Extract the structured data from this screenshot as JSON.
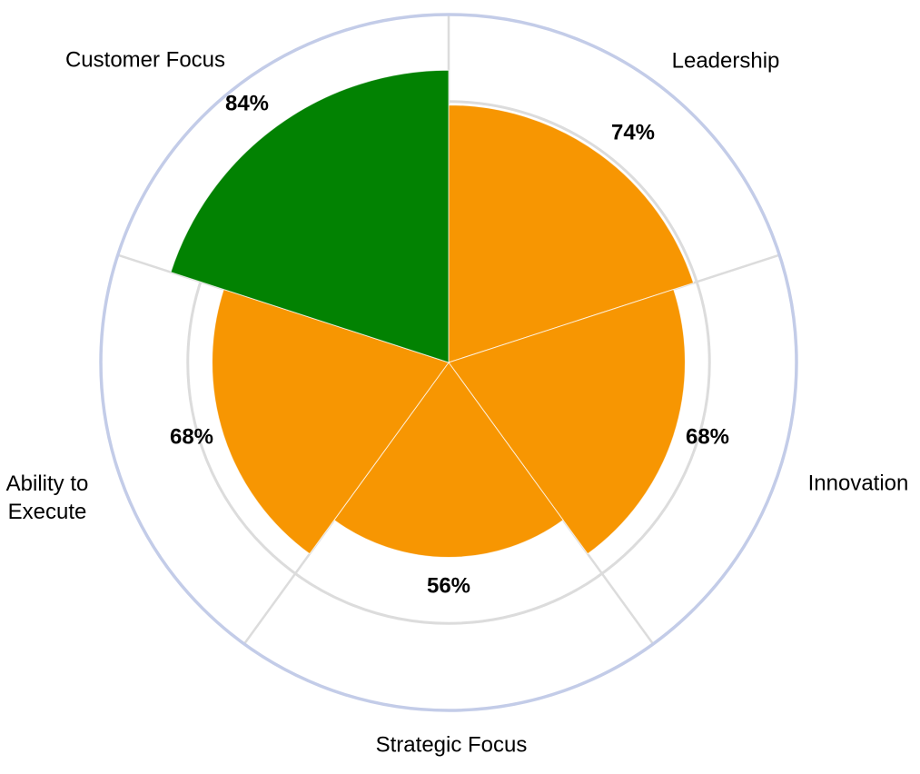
{
  "chart_data": {
    "type": "pie",
    "variant": "polar-area-sector-gauge",
    "title": "",
    "unit": "%",
    "sector_span_deg": 72,
    "start_angle": "top (12 o'clock)",
    "direction": "clockwise",
    "radial_scale": {
      "min": 0,
      "max": 100,
      "outer_circle_percent": 100,
      "reference_ring_percent": 75
    },
    "grid": "outer circle + 75% reference ring + 5 radial dividers",
    "legend_position": "none",
    "categories": [
      "Leadership",
      "Innovation",
      "Strategic Focus",
      "Ability to Execute",
      "Customer Focus"
    ],
    "values": [
      74,
      68,
      56,
      68,
      84
    ],
    "slices": [
      {
        "label": "Leadership",
        "value": 74,
        "display": "74%",
        "color": "#F79602"
      },
      {
        "label": "Innovation",
        "value": 68,
        "display": "68%",
        "color": "#F79602"
      },
      {
        "label": "Strategic Focus",
        "value": 56,
        "display": "56%",
        "color": "#F79602"
      },
      {
        "label": "Ability to Execute",
        "value": 68,
        "display": "68%",
        "color": "#F79602"
      },
      {
        "label": "Customer Focus",
        "value": 84,
        "display": "84%",
        "color": "#028202"
      }
    ],
    "style": {
      "outer_circle_color": "#C3CCE8",
      "grid_color": "#DCDCDC",
      "slice_seam_color": "#FFFFFF",
      "background": "#FFFFFF",
      "label_color": "#000000"
    }
  }
}
